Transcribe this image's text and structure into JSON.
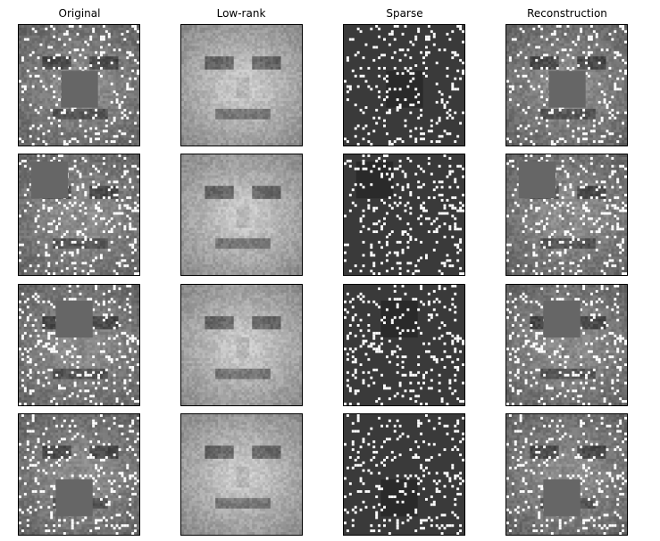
{
  "columns": [
    {
      "title": "Original"
    },
    {
      "title": "Low-rank"
    },
    {
      "title": "Sparse"
    },
    {
      "title": "Reconstruction"
    }
  ],
  "rows": [
    {
      "occlusion": "center"
    },
    {
      "occlusion": "upper-left"
    },
    {
      "occlusion": "upper-center"
    },
    {
      "occlusion": "lower-center"
    }
  ]
}
